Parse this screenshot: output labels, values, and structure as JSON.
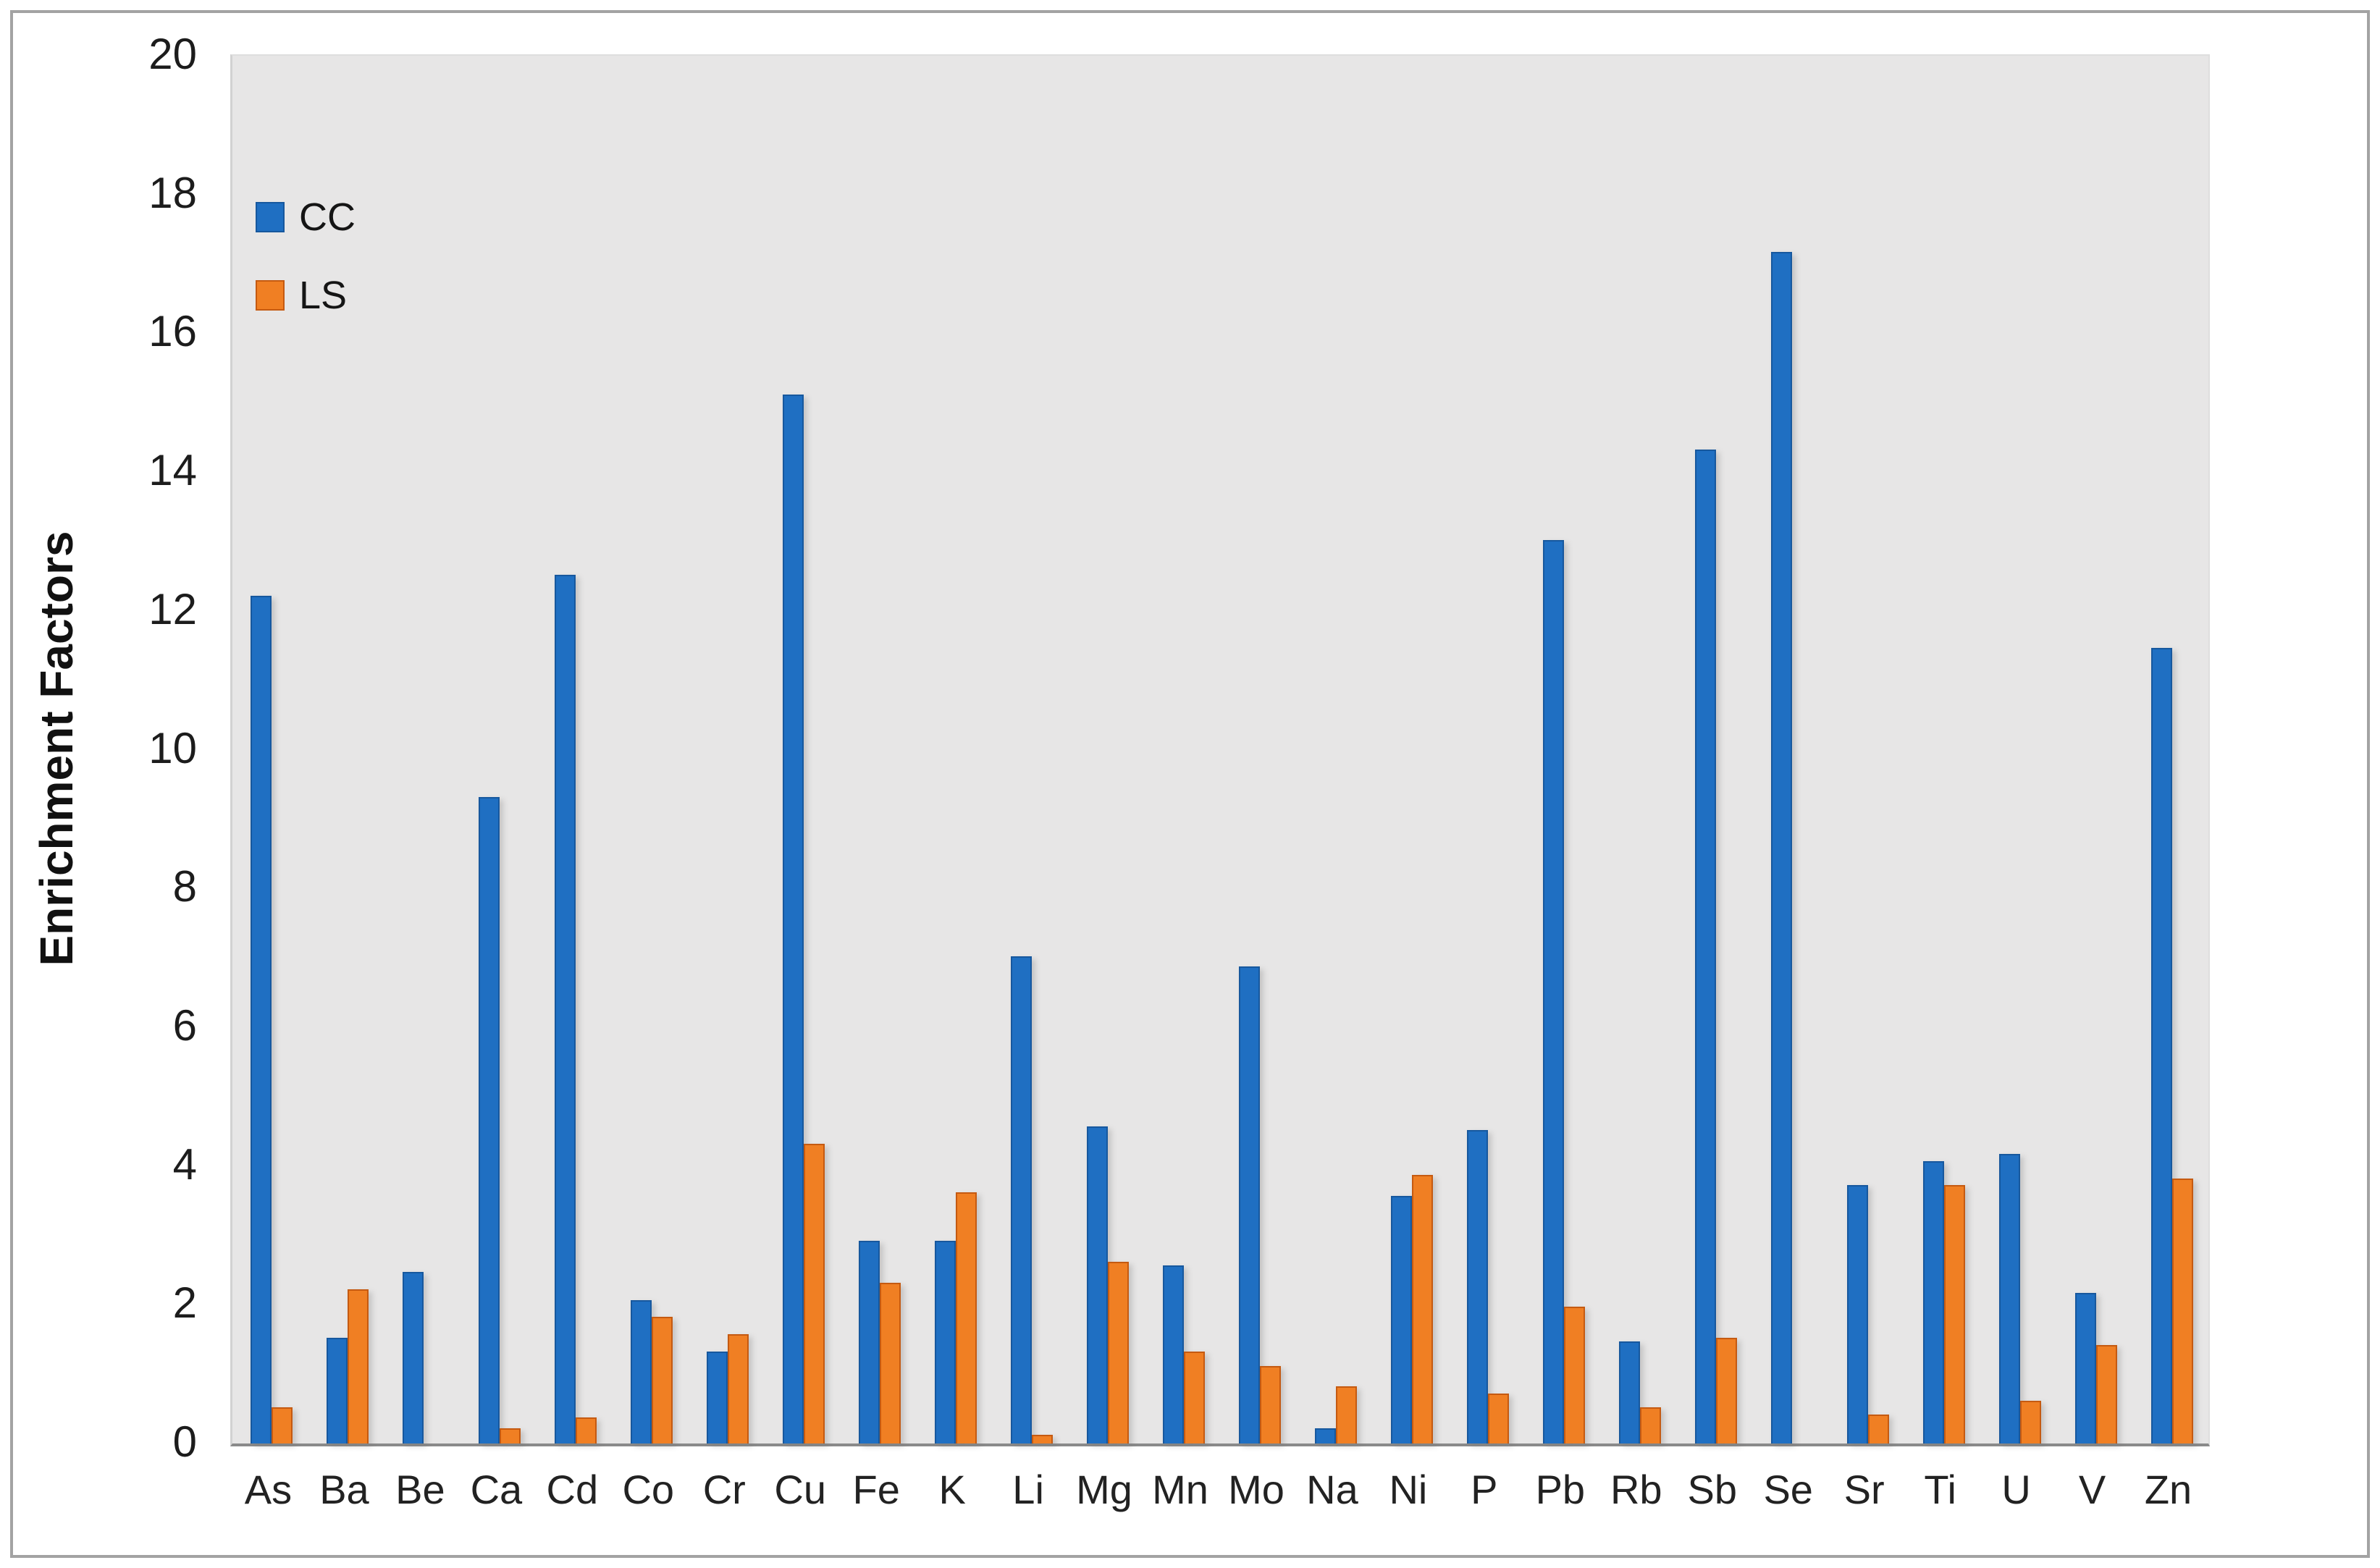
{
  "figure": {
    "background": "#FFFFFF",
    "outer_border_color": "#A3A3A3",
    "plot_background": "#E7E6E6",
    "axis_line_color": "#8A8A8A"
  },
  "legend": {
    "items": [
      {
        "label": "CC",
        "color": "#1F6FC2"
      },
      {
        "label": "LS",
        "color": "#F07F23"
      }
    ]
  },
  "y_axis": {
    "title": "Enrichment Factors",
    "min": 0,
    "max": 20,
    "tick_step": 2,
    "tick_labels": [
      "0",
      "2",
      "4",
      "6",
      "8",
      "10",
      "12",
      "14",
      "16",
      "18",
      "20"
    ]
  },
  "chart_data": {
    "type": "bar",
    "title": "",
    "xlabel": "",
    "ylabel": "Enrichment Factors",
    "ylim": [
      0,
      20
    ],
    "grid": false,
    "legend_position": "top-left-inside",
    "categories": [
      "As",
      "Ba",
      "Be",
      "Ca",
      "Cd",
      "Co",
      "Cr",
      "Cu",
      "Fe",
      "K",
      "Li",
      "Mg",
      "Mn",
      "Mo",
      "Na",
      "Ni",
      "P",
      "Pb",
      "Rb",
      "Sb",
      "Se",
      "Sr",
      "Ti",
      "U",
      "V",
      "Zn"
    ],
    "series": [
      {
        "name": "CC",
        "color": "#1F6FC2",
        "values": [
          12.2,
          1.5,
          2.45,
          9.3,
          12.5,
          2.05,
          1.3,
          15.1,
          2.9,
          2.9,
          7.0,
          4.55,
          2.55,
          6.85,
          0.2,
          3.55,
          4.5,
          13.0,
          1.45,
          14.3,
          17.15,
          3.7,
          4.05,
          4.15,
          2.15,
          11.45
        ]
      },
      {
        "name": "LS",
        "color": "#F07F23",
        "values": [
          0.5,
          2.2,
          0,
          0.2,
          0.35,
          1.8,
          1.55,
          4.3,
          2.3,
          3.6,
          0.1,
          2.6,
          1.3,
          1.1,
          0.8,
          3.85,
          0.7,
          1.95,
          0.5,
          1.5,
          0,
          0.4,
          3.7,
          0.6,
          1.4,
          3.8
        ]
      }
    ]
  }
}
